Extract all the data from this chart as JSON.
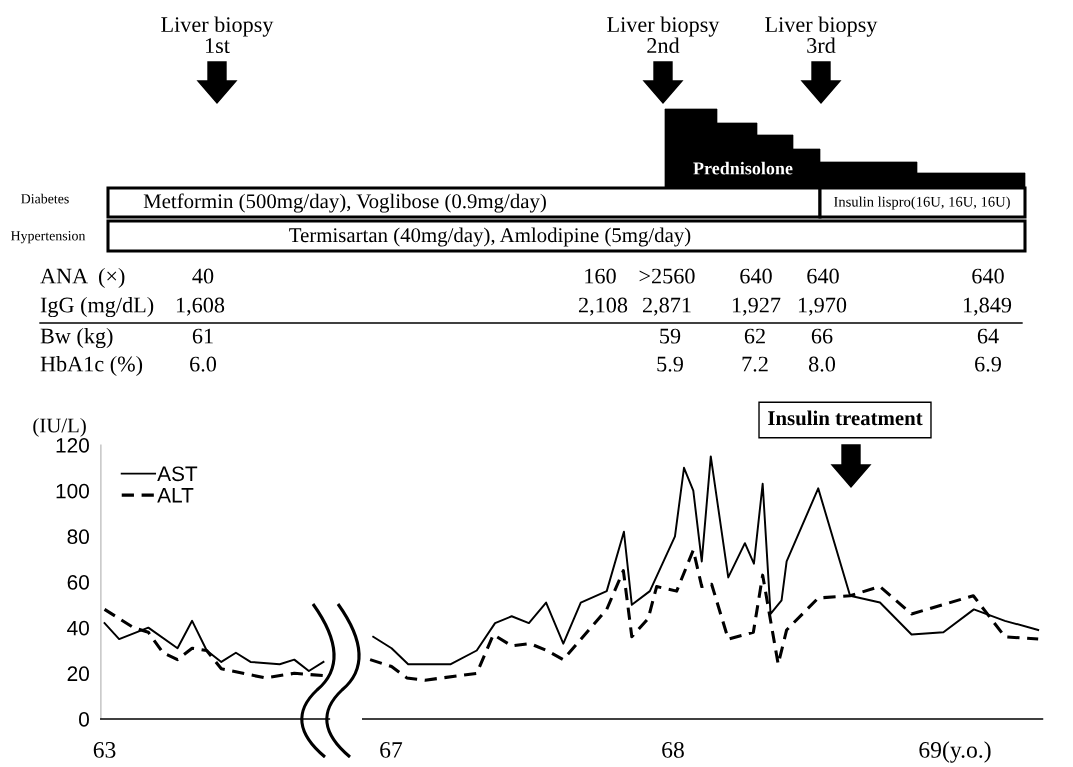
{
  "chart_data": [
    {
      "type": "line",
      "ylabel": "(IU/L)",
      "categories": [
        "63",
        null,
        null,
        null,
        null,
        null,
        null,
        null,
        null,
        null,
        null,
        null,
        null,
        null,
        null,
        null
      ],
      "ylim": [
        0,
        120
      ],
      "yticks": [
        0,
        20,
        40,
        60,
        80,
        100,
        120
      ],
      "legend": "top left",
      "grid": false,
      "marker": "none",
      "series": [
        {
          "name": "AST",
          "color": "#000000",
          "line_style": "solid",
          "values": [
            42,
            35,
            null,
            40,
            null,
            31,
            43,
            30,
            25,
            29,
            25,
            null,
            24,
            26,
            21,
            25
          ]
        },
        {
          "name": "ALT",
          "color": "#000000",
          "line_style": "dashed",
          "values": [
            48,
            null,
            40,
            38,
            29,
            26,
            31,
            30,
            22,
            null,
            null,
            18,
            null,
            20,
            null,
            19
          ]
        }
      ]
    },
    {
      "type": "line",
      "xlim": [
        66.9,
        69.31
      ],
      "xticks": [
        67,
        68,
        {
          "value": 69,
          "label": "69(y.o.)"
        }
      ],
      "ylim": [
        0,
        120
      ],
      "tick_labels": "x",
      "grid": false,
      "marker": "none",
      "annotations": [
        "Liver biopsy\n1st",
        "Liver biopsy\n2nd",
        "Liver biopsy\n3rd",
        "Prednisolone",
        "Diabetes",
        "Metformin (500mg/day), Voglibose (0.9mg/day)",
        "Insulin lispro(16U, 16U, 16U)",
        "Hypertension",
        "Termisartan (40mg/day), Amlodipine (5mg/day)",
        "ANA  (×)",
        "40",
        "160",
        ">2560",
        "640",
        "640",
        "640",
        "IgG (mg/dL)",
        "1,608",
        "2,108",
        "2,871",
        "1,927",
        "1,970",
        "1,849",
        "Bw (kg)",
        "61",
        "59",
        "62",
        "66",
        "64",
        "HbA1c (%)",
        "6.0",
        "5.9",
        "7.2",
        "8.0",
        "6.9",
        "Insulin treatment"
      ],
      "series": [
        {
          "color": "#000000",
          "line_style": "solid",
          "x": [
            66.937,
            67.002,
            67.061,
            67.212,
            67.304,
            67.369,
            67.428,
            67.489,
            67.55,
            67.611,
            67.673,
            67.765,
            67.826,
            67.854,
            67.918,
            68.007,
            68.039,
            68.072,
            68.102,
            68.134,
            68.196,
            68.255,
            68.287,
            68.318,
            68.346,
            68.385,
            68.403,
            68.515,
            68.628,
            68.734,
            68.846,
            68.959,
            69.067,
            69.177,
            69.295
          ],
          "values": [
            36,
            31,
            24,
            24,
            30,
            42,
            45,
            42,
            51,
            33,
            51,
            56,
            82,
            50,
            56,
            80,
            110,
            100,
            69,
            115,
            62,
            77,
            68,
            103,
            46,
            52,
            69,
            101,
            54,
            51,
            37,
            38,
            48,
            43,
            39
          ]
        },
        {
          "color": "#000000",
          "line_style": "dashed",
          "x": [
            66.926,
            67.002,
            67.056,
            67.121,
            67.304,
            67.363,
            67.428,
            67.493,
            67.552,
            67.611,
            67.765,
            67.824,
            67.854,
            67.912,
            67.942,
            68.013,
            68.072,
            68.102,
            68.137,
            68.196,
            68.285,
            68.318,
            68.373,
            68.403,
            68.515,
            68.628,
            68.734,
            68.846,
            69.065,
            69.177,
            69.295
          ],
          "values": [
            26,
            23,
            18,
            17,
            20,
            37,
            32,
            33,
            30,
            26,
            48,
            65,
            36,
            44,
            58,
            56,
            74,
            58,
            59,
            35,
            38,
            63,
            24,
            39,
            53,
            54,
            58,
            46,
            54,
            36,
            35
          ]
        }
      ]
    }
  ]
}
